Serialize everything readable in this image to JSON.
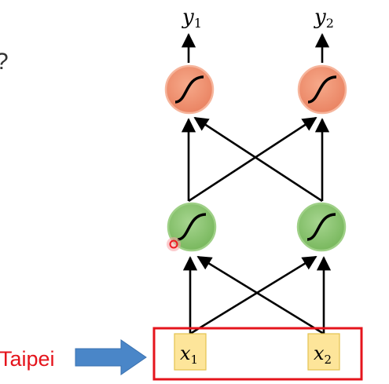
{
  "left_label": "Taipei",
  "clipped_glyph": "?",
  "inputs": [
    {
      "var": "x",
      "sub": "1"
    },
    {
      "var": "x",
      "sub": "2"
    }
  ],
  "outputs": [
    {
      "var": "y",
      "sub": "1"
    },
    {
      "var": "y",
      "sub": "2"
    }
  ],
  "colors": {
    "hidden_fill": "#84c06a",
    "hidden_stroke": "#9fd087",
    "output_fill": "#ef8f6f",
    "output_stroke": "#f6b59c",
    "input_box_fill": "#fde59a",
    "input_box_border": "#e3c24f",
    "frame_red": "#e5141c",
    "label_red": "#e5141c",
    "arrow_blue": "#4a86c8",
    "edge": "#000000",
    "cursor_red": "#ee1c24"
  }
}
